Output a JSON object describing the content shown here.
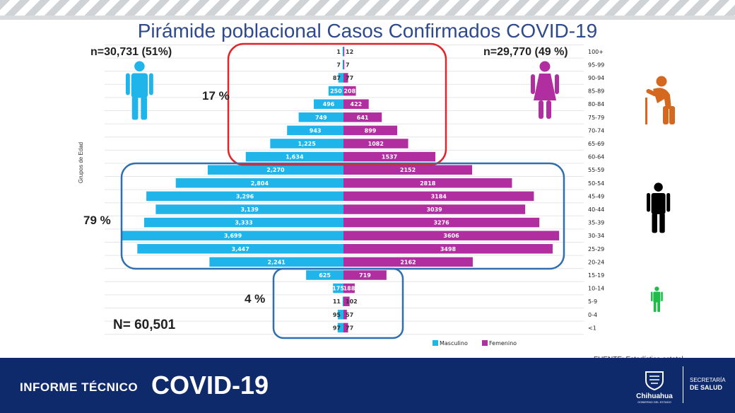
{
  "title": "Pirámide poblacional Casos Confirmados COVID-19",
  "left_total": "n=30,731 (51%)",
  "right_total": "n=29,770 (49 %)",
  "pct_old": "17 %",
  "pct_adult": "79 %",
  "pct_young": "4 %",
  "grand_total": "N= 60,501",
  "source": "FUENTE: Estadística estatal.",
  "footer": {
    "informe": "INFORME TÉCNICO",
    "covid": "COVID-19",
    "chihuahua": "Chihuahua",
    "gobierno": "GOBIERNO DEL ESTADO",
    "secretaria_1": "SECRETARÍA",
    "secretaria_2": "DE SALUD"
  },
  "colors": {
    "male": "#1fb4ea",
    "female": "#b02ea0",
    "old_box": "#e3242b",
    "group_box": "#2f6fb0",
    "footer": "#0f2a6b"
  },
  "icons": {
    "male": "man-icon",
    "female": "woman-icon",
    "elderly": "elderly-icon",
    "adult": "adult-icon",
    "child": "child-icon"
  },
  "chart_data": {
    "type": "bar",
    "orientation": "horizontal-population-pyramid",
    "ylabel": "Grupos de Edad",
    "categories": [
      "100+",
      "95-99",
      "90-94",
      "85-89",
      "80-84",
      "75-79",
      "70-74",
      "65-69",
      "60-64",
      "55-59",
      "50-54",
      "45-49",
      "40-44",
      "35-39",
      "30-34",
      "25-29",
      "20-24",
      "15-19",
      "10-14",
      "5-9",
      "0-4",
      "<1"
    ],
    "series": [
      {
        "name": "Masculino",
        "labels": [
          "1",
          "7",
          "87",
          "250",
          "496",
          "749",
          "943",
          "1,225",
          "1,634",
          "2,270",
          "2,804",
          "3,296",
          "3,139",
          "3,333",
          "3,699",
          "3,447",
          "2,241",
          "625",
          "175",
          "11",
          "95",
          "97"
        ],
        "values": [
          1,
          7,
          87,
          250,
          496,
          749,
          943,
          1225,
          1634,
          2270,
          2804,
          3296,
          3139,
          3333,
          3699,
          3447,
          2241,
          625,
          175,
          11,
          95,
          97
        ]
      },
      {
        "name": "Femenino",
        "labels": [
          "12",
          "7",
          "77",
          "208",
          "422",
          "641",
          "899",
          "1082",
          "1537",
          "2152",
          "2818",
          "3184",
          "3039",
          "3276",
          "3606",
          "3498",
          "2162",
          "719",
          "188",
          "102",
          "57",
          "77"
        ],
        "values": [
          12,
          7,
          77,
          208,
          422,
          641,
          899,
          1082,
          1537,
          2152,
          2818,
          3184,
          3039,
          3276,
          3606,
          3498,
          2162,
          719,
          188,
          102,
          57,
          77
        ]
      }
    ],
    "legend": [
      "Masculino",
      "Femenino"
    ],
    "legend_position": "bottom"
  }
}
